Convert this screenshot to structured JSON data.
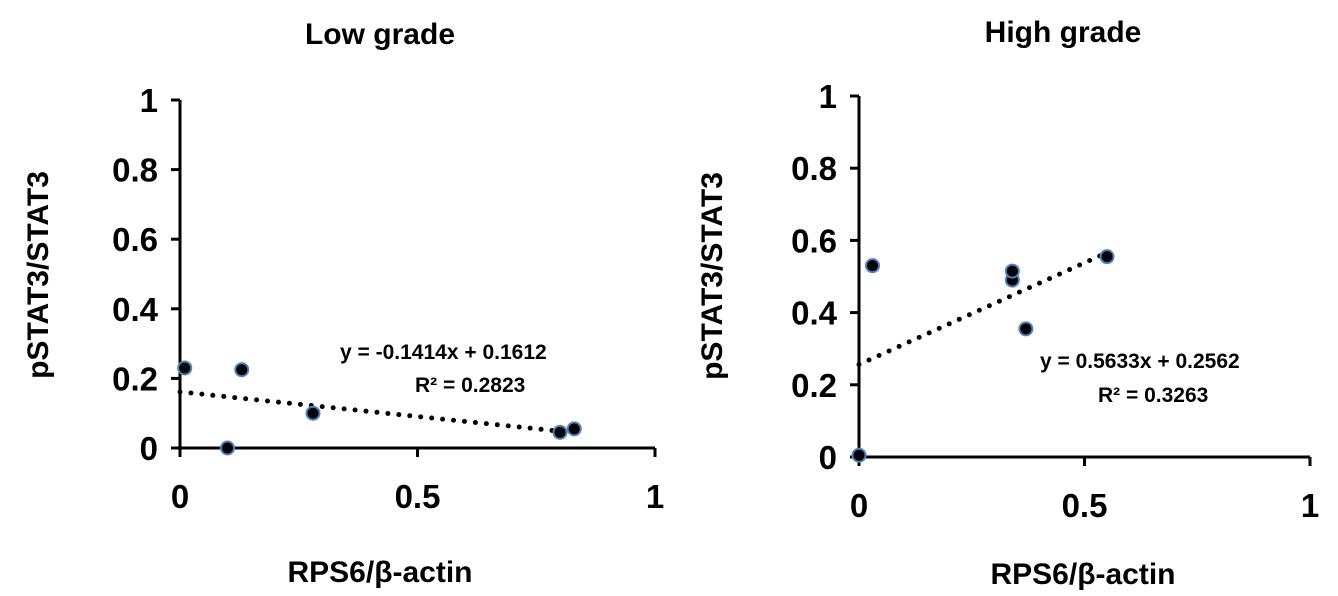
{
  "chart_data": [
    {
      "type": "scatter",
      "title": "Low grade",
      "xlabel": "RPS6/β-actin",
      "ylabel": "pSTAT3/STAT3",
      "xlim": [
        0,
        1
      ],
      "ylim": [
        0,
        1
      ],
      "x_ticks": [
        "0",
        "0.5",
        "1"
      ],
      "y_ticks": [
        "0",
        "0.2",
        "0.4",
        "0.6",
        "0.8",
        "1"
      ],
      "grid": false,
      "points": [
        {
          "x": 0.01,
          "y": 0.23
        },
        {
          "x": 0.1,
          "y": 0.0
        },
        {
          "x": 0.13,
          "y": 0.225
        },
        {
          "x": 0.28,
          "y": 0.1
        },
        {
          "x": 0.8,
          "y": 0.045
        },
        {
          "x": 0.83,
          "y": 0.055
        }
      ],
      "trendline": {
        "type": "linear",
        "slope": -0.1414,
        "intercept": 0.1612,
        "range": [
          0,
          0.83
        ]
      },
      "equation": "y = -0.1414x + 0.1612",
      "r_squared": "R² = 0.2823"
    },
    {
      "type": "scatter",
      "title": "High grade",
      "xlabel": "RPS6/β-actin",
      "ylabel": "pSTAT3/STAT3",
      "xlim": [
        0,
        1
      ],
      "ylim": [
        0,
        1
      ],
      "x_ticks": [
        "0",
        "0.5",
        "1"
      ],
      "y_ticks": [
        "0",
        "0.2",
        "0.4",
        "0.6",
        "0.8",
        "1"
      ],
      "grid": false,
      "points": [
        {
          "x": 0.0,
          "y": 0.005
        },
        {
          "x": 0.03,
          "y": 0.53
        },
        {
          "x": 0.34,
          "y": 0.49
        },
        {
          "x": 0.34,
          "y": 0.515
        },
        {
          "x": 0.37,
          "y": 0.355
        },
        {
          "x": 0.55,
          "y": 0.555
        }
      ],
      "trendline": {
        "type": "linear",
        "slope": 0.5633,
        "intercept": 0.2562,
        "range": [
          0,
          0.55
        ]
      },
      "equation": "y = 0.5633x + 0.2562",
      "r_squared": "R² = 0.3263"
    }
  ],
  "colors": {
    "marker_fill": "#000000",
    "marker_stroke": "#4f81bd",
    "axis": "#000000",
    "trendline": "#000000"
  }
}
